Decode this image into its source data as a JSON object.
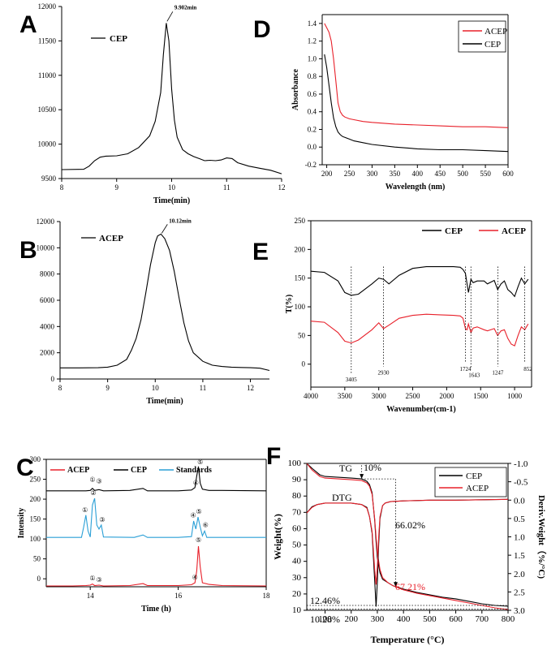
{
  "panel_letters": [
    "A",
    "B",
    "C",
    "D",
    "E",
    "F"
  ],
  "chart_data": [
    {
      "id": "A",
      "type": "line",
      "xlabel": "Time(min)",
      "ylabel": "",
      "xlim": [
        8,
        12
      ],
      "ylim": [
        9500,
        12000
      ],
      "xticks": [
        8,
        9,
        10,
        11,
        12
      ],
      "yticks": [
        9500,
        10000,
        10500,
        11000,
        11500,
        12000
      ],
      "legend": {
        "position": "top-left",
        "entries": [
          "CEP"
        ]
      },
      "annotation": {
        "text": "9.902min",
        "x": 9.902,
        "y": 11760
      },
      "series": [
        {
          "name": "CEP",
          "color": "#000000",
          "x": [
            8.0,
            8.4,
            8.5,
            8.6,
            8.7,
            8.8,
            9.0,
            9.2,
            9.4,
            9.6,
            9.7,
            9.8,
            9.85,
            9.902,
            9.95,
            10.0,
            10.05,
            10.1,
            10.2,
            10.3,
            10.4,
            10.5,
            10.6,
            10.7,
            10.8,
            10.9,
            11.0,
            11.1,
            11.2,
            11.4,
            11.6,
            11.8,
            12.0
          ],
          "y": [
            9630,
            9635,
            9680,
            9760,
            9810,
            9825,
            9830,
            9860,
            9950,
            10120,
            10330,
            10750,
            11300,
            11760,
            11500,
            10800,
            10350,
            10100,
            9920,
            9860,
            9820,
            9790,
            9760,
            9765,
            9760,
            9770,
            9800,
            9790,
            9730,
            9680,
            9650,
            9620,
            9570
          ]
        }
      ]
    },
    {
      "id": "B",
      "type": "line",
      "xlabel": "Time(min)",
      "ylabel": "",
      "xlim": [
        8,
        12.4
      ],
      "ylim": [
        0,
        12000
      ],
      "xticks": [
        8,
        9,
        10,
        11,
        12
      ],
      "yticks": [
        0,
        2000,
        4000,
        6000,
        8000,
        10000,
        12000
      ],
      "legend": {
        "position": "top-left",
        "entries": [
          "ACEP"
        ]
      },
      "annotation": {
        "text": "10.12min",
        "x": 10.12,
        "y": 11050
      },
      "series": [
        {
          "name": "ACEP",
          "color": "#000000",
          "x": [
            8.0,
            8.4,
            8.8,
            9.0,
            9.2,
            9.4,
            9.5,
            9.6,
            9.7,
            9.8,
            9.9,
            10.0,
            10.05,
            10.12,
            10.2,
            10.3,
            10.4,
            10.5,
            10.6,
            10.7,
            10.8,
            11.0,
            11.2,
            11.4,
            11.6,
            11.8,
            12.0,
            12.2,
            12.4
          ],
          "y": [
            850,
            850,
            860,
            900,
            1050,
            1500,
            2200,
            3100,
            4500,
            6500,
            8700,
            10400,
            10900,
            11050,
            10700,
            9800,
            8200,
            6200,
            4300,
            2900,
            2000,
            1350,
            1050,
            950,
            900,
            880,
            860,
            820,
            650
          ]
        }
      ]
    },
    {
      "id": "C",
      "type": "line",
      "xlabel": "Time (h)",
      "ylabel": "Intensity",
      "xlim": [
        13,
        18
      ],
      "ylim": [
        -20,
        300
      ],
      "xticks": [
        14,
        16,
        18
      ],
      "yticks": [
        0,
        50,
        100,
        150,
        200,
        250,
        300
      ],
      "legend": {
        "position": "top",
        "entries": [
          "ACEP",
          "CEP",
          "Standards"
        ]
      },
      "peak_labels": [
        "①",
        "②",
        "③",
        "④",
        "⑤",
        "⑥"
      ],
      "series": [
        {
          "name": "ACEP",
          "color": "#e8202a",
          "x": [
            13.0,
            13.6,
            13.9,
            14.0,
            14.05,
            14.1,
            14.2,
            14.3,
            14.9,
            15.2,
            15.3,
            16.0,
            16.3,
            16.38,
            16.42,
            16.46,
            16.5,
            16.55,
            16.7,
            17.0,
            18.0
          ],
          "y": [
            -18,
            -18,
            -17,
            -16,
            -13,
            -17,
            -16,
            -18,
            -17,
            -12,
            -17,
            -17,
            -15,
            -10,
            20,
            82,
            30,
            -10,
            -14,
            -17,
            -18
          ]
        },
        {
          "name": "CEP",
          "color": "#000000",
          "x": [
            13.0,
            13.6,
            13.9,
            14.0,
            14.05,
            14.1,
            14.2,
            14.3,
            14.9,
            15.2,
            15.3,
            16.0,
            16.3,
            16.38,
            16.42,
            16.46,
            16.5,
            16.55,
            16.7,
            17.0,
            18.0
          ],
          "y": [
            221,
            221,
            221,
            222,
            227,
            222,
            224,
            221,
            222,
            227,
            221,
            221,
            223,
            229,
            258,
            282,
            240,
            225,
            222,
            222,
            221
          ]
        },
        {
          "name": "Standards",
          "color": "#2a9fd6",
          "x": [
            13.0,
            13.5,
            13.8,
            13.85,
            13.9,
            13.95,
            14.0,
            14.05,
            14.1,
            14.15,
            14.2,
            14.25,
            14.3,
            15.0,
            15.2,
            15.3,
            16.0,
            16.3,
            16.35,
            16.4,
            16.45,
            16.5,
            16.55,
            16.6,
            16.65,
            16.7,
            17.0,
            18.0
          ],
          "y": [
            104,
            104,
            104,
            130,
            160,
            120,
            105,
            185,
            202,
            135,
            125,
            135,
            105,
            104,
            110,
            104,
            104,
            106,
            145,
            125,
            155,
            130,
            108,
            120,
            104,
            104,
            104,
            104
          ]
        }
      ]
    },
    {
      "id": "D",
      "type": "line",
      "xlabel": "Wavelength (nm)",
      "ylabel": "Absorbance",
      "xlim": [
        190,
        600
      ],
      "ylim": [
        -0.2,
        1.5
      ],
      "xticks": [
        200,
        250,
        300,
        350,
        400,
        450,
        500,
        550,
        600
      ],
      "yticks": [
        -0.2,
        0.0,
        0.2,
        0.4,
        0.6,
        0.8,
        1.0,
        1.2,
        1.4
      ],
      "legend": {
        "position": "top-right",
        "entries": [
          "ACEP",
          "CEP"
        ]
      },
      "series": [
        {
          "name": "ACEP",
          "color": "#e8202a",
          "x": [
            195,
            200,
            205,
            210,
            215,
            220,
            225,
            230,
            235,
            240,
            250,
            260,
            280,
            300,
            350,
            400,
            450,
            500,
            550,
            600
          ],
          "y": [
            1.4,
            1.35,
            1.3,
            1.2,
            1.0,
            0.75,
            0.5,
            0.4,
            0.36,
            0.34,
            0.32,
            0.31,
            0.29,
            0.28,
            0.26,
            0.25,
            0.24,
            0.23,
            0.23,
            0.22
          ]
        },
        {
          "name": "CEP",
          "color": "#000000",
          "x": [
            195,
            200,
            205,
            210,
            215,
            220,
            225,
            230,
            235,
            240,
            250,
            260,
            280,
            300,
            350,
            400,
            450,
            500,
            550,
            600
          ],
          "y": [
            1.05,
            0.9,
            0.7,
            0.5,
            0.33,
            0.23,
            0.17,
            0.14,
            0.12,
            0.11,
            0.09,
            0.07,
            0.05,
            0.03,
            0.0,
            -0.02,
            -0.03,
            -0.03,
            -0.04,
            -0.05
          ]
        }
      ]
    },
    {
      "id": "E",
      "type": "line",
      "xlabel": "Wavenumber(cm-1)",
      "ylabel": "T(%)",
      "xlim": [
        4000,
        750
      ],
      "ylim": [
        -40,
        250
      ],
      "xticks": [
        4000,
        3500,
        3000,
        2500,
        2000,
        1500,
        1000
      ],
      "yticks": [
        0,
        50,
        100,
        150,
        200,
        250
      ],
      "legend": {
        "position": "top",
        "entries": [
          "CEP",
          "ACEP"
        ]
      },
      "annotations": [
        "3405",
        "2930",
        "1724",
        "1643",
        "1247",
        "852"
      ],
      "series": [
        {
          "name": "CEP",
          "color": "#000000",
          "x": [
            4000,
            3800,
            3600,
            3500,
            3405,
            3300,
            3100,
            3000,
            2930,
            2850,
            2700,
            2500,
            2300,
            2100,
            1900,
            1800,
            1760,
            1724,
            1700,
            1680,
            1643,
            1610,
            1550,
            1450,
            1400,
            1300,
            1250,
            1200,
            1150,
            1100,
            1050,
            1000,
            950,
            900,
            850,
            800
          ],
          "y": [
            162,
            160,
            145,
            125,
            120,
            122,
            140,
            150,
            148,
            140,
            155,
            167,
            170,
            170,
            170,
            169,
            165,
            158,
            140,
            125,
            148,
            142,
            145,
            145,
            140,
            146,
            130,
            140,
            145,
            130,
            125,
            118,
            135,
            150,
            140,
            148
          ]
        },
        {
          "name": "ACEP",
          "color": "#e8202a",
          "x": [
            4000,
            3800,
            3600,
            3500,
            3405,
            3300,
            3100,
            3000,
            2930,
            2850,
            2700,
            2500,
            2300,
            2100,
            1900,
            1800,
            1760,
            1724,
            1700,
            1680,
            1643,
            1610,
            1550,
            1450,
            1400,
            1300,
            1250,
            1200,
            1150,
            1100,
            1050,
            1000,
            950,
            900,
            850,
            800
          ],
          "y": [
            75,
            73,
            55,
            40,
            37,
            42,
            60,
            72,
            62,
            68,
            80,
            85,
            87,
            86,
            85,
            84,
            80,
            62,
            60,
            70,
            55,
            63,
            65,
            60,
            58,
            62,
            50,
            58,
            60,
            45,
            35,
            32,
            50,
            65,
            60,
            70
          ]
        }
      ]
    },
    {
      "id": "F",
      "type": "line",
      "xlabel": "Temperature (°C)",
      "ylabel": "Weight(%)",
      "y2label": "Deriv.Weight（%/°C)",
      "xlim": [
        30,
        800
      ],
      "ylim": [
        10,
        100
      ],
      "y2lim": [
        3.0,
        -1.0
      ],
      "xticks": [
        100,
        200,
        300,
        400,
        500,
        600,
        700,
        800
      ],
      "yticks": [
        10,
        20,
        30,
        40,
        50,
        60,
        70,
        80,
        90,
        100
      ],
      "y2ticks": [
        "-1.0",
        "-0.5",
        "0.0",
        "0.5",
        "1.0",
        "1.5",
        "2.0",
        "2.5",
        "3.0"
      ],
      "legend": {
        "position": "top-right",
        "entries": [
          "CEP",
          "ACEP"
        ]
      },
      "curve_labels": [
        "TG",
        "DTG"
      ],
      "annotations": [
        "10%",
        "66.02%",
        "67.21%",
        "12.46%",
        "10.28%"
      ],
      "annotation_colors": {
        "67.21%": "#e8202a"
      },
      "series": [
        {
          "name": "CEP TG",
          "color": "#000000",
          "x": [
            30,
            50,
            80,
            100,
            150,
            200,
            240,
            260,
            270,
            280,
            290,
            295,
            300,
            310,
            320,
            340,
            360,
            400,
            450,
            500,
            550,
            600,
            650,
            700,
            750,
            800
          ],
          "y": [
            100,
            97,
            93,
            92,
            91.5,
            91,
            90.5,
            89,
            87,
            82,
            65,
            52,
            42,
            33,
            29,
            27,
            25,
            23,
            21,
            19.5,
            18,
            17,
            15.5,
            14,
            13,
            12.5
          ]
        },
        {
          "name": "ACEP TG",
          "color": "#e8202a",
          "x": [
            30,
            50,
            80,
            100,
            150,
            200,
            240,
            260,
            270,
            280,
            290,
            295,
            300,
            310,
            320,
            340,
            360,
            400,
            450,
            500,
            550,
            600,
            650,
            700,
            750,
            800
          ],
          "y": [
            100,
            96,
            92,
            91,
            90.5,
            90,
            89.5,
            88,
            86,
            81,
            66,
            55,
            45,
            35,
            30,
            27,
            25,
            22.5,
            20.5,
            19,
            17.5,
            16,
            14.5,
            13,
            11.5,
            10.5
          ]
        },
        {
          "name": "CEP DTG",
          "color": "#000000",
          "x": [
            30,
            50,
            70,
            100,
            150,
            200,
            240,
            260,
            270,
            280,
            290,
            295,
            300,
            305,
            310,
            320,
            330,
            350,
            400,
            500,
            600,
            700,
            800
          ],
          "y": [
            0.35,
            0.18,
            0.12,
            0.08,
            0.08,
            0.08,
            0.12,
            0.2,
            0.45,
            0.9,
            2.2,
            2.9,
            2.2,
            1.2,
            0.5,
            0.15,
            0.08,
            0.04,
            0.02,
            0.0,
            0.0,
            -0.01,
            -0.02
          ]
        },
        {
          "name": "ACEP DTG",
          "color": "#e8202a",
          "x": [
            30,
            50,
            70,
            100,
            150,
            200,
            240,
            260,
            270,
            280,
            290,
            295,
            300,
            305,
            310,
            320,
            330,
            350,
            400,
            500,
            600,
            700,
            800
          ],
          "y": [
            0.35,
            0.2,
            0.12,
            0.08,
            0.08,
            0.08,
            0.12,
            0.22,
            0.45,
            0.85,
            1.9,
            2.3,
            1.8,
            1.0,
            0.45,
            0.15,
            0.08,
            0.04,
            0.02,
            0.0,
            0.0,
            -0.01,
            -0.02
          ]
        }
      ]
    }
  ]
}
